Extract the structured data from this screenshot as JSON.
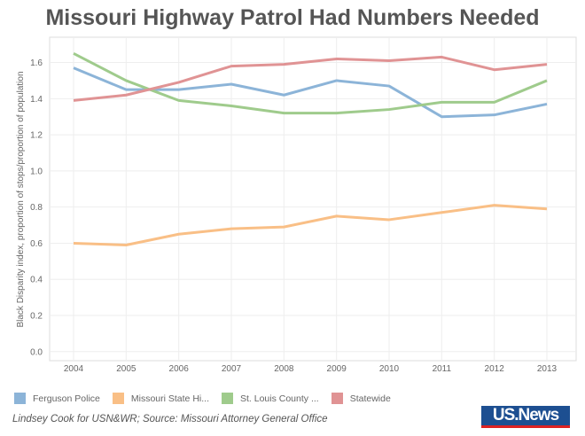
{
  "title": "Missouri Highway Patrol Had Numbers Needed",
  "source": "Lindsey Cook for USN&WR; Source: Missouri Attorney General Office",
  "logo_text": "US.News",
  "chart_data": {
    "type": "line",
    "title": "Missouri Highway Patrol Had Numbers Needed",
    "xlabel": "",
    "ylabel": "Black Disparity index, proportion of stops/proportion of population",
    "x": [
      2004,
      2005,
      2006,
      2007,
      2008,
      2009,
      2010,
      2011,
      2012,
      2013
    ],
    "x_tick_labels": [
      "2004",
      "2005",
      "2006",
      "2007",
      "2008",
      "2009",
      "2010",
      "2011",
      "2012",
      "2013"
    ],
    "y_ticks": [
      "0.0",
      "0.2",
      "0.4",
      "0.6",
      "0.8",
      "1.0",
      "1.2",
      "1.4",
      "1.6"
    ],
    "ylim": [
      -0.05,
      1.74
    ],
    "grid": true,
    "legend_position": "bottom",
    "series": [
      {
        "name": "Ferguson Police",
        "color": "#8cb4d8",
        "values": [
          1.57,
          1.45,
          1.45,
          1.48,
          1.42,
          1.5,
          1.47,
          1.3,
          1.31,
          1.37
        ]
      },
      {
        "name": "Missouri State Hi...",
        "color": "#f9bf86",
        "values": [
          0.6,
          0.59,
          0.65,
          0.68,
          0.69,
          0.75,
          0.73,
          0.77,
          0.81,
          0.79
        ]
      },
      {
        "name": "St. Louis County ...",
        "color": "#9fcb8c",
        "values": [
          1.65,
          1.5,
          1.39,
          1.36,
          1.32,
          1.32,
          1.34,
          1.38,
          1.38,
          1.5
        ]
      },
      {
        "name": "Statewide",
        "color": "#e09394",
        "values": [
          1.39,
          1.42,
          1.49,
          1.58,
          1.59,
          1.62,
          1.61,
          1.63,
          1.56,
          1.59
        ]
      }
    ]
  }
}
